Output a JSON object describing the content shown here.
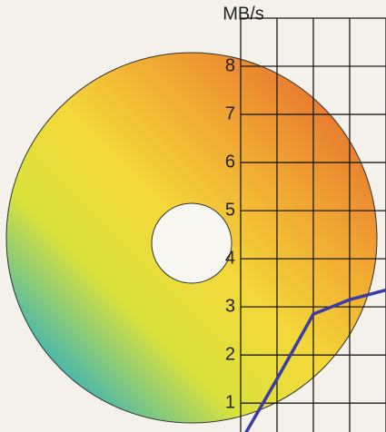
{
  "chart_data": {
    "type": "line",
    "y_label": "MB/s",
    "categories": [
      null,
      null,
      null,
      null,
      null
    ],
    "values": [
      0.2,
      1.5,
      2.85,
      3.15,
      3.35
    ],
    "color": "#3b3ba6",
    "ylim": [
      0.4,
      9
    ],
    "yticks": [
      1,
      2,
      3,
      4,
      5,
      6,
      7,
      8
    ],
    "grid": true
  }
}
